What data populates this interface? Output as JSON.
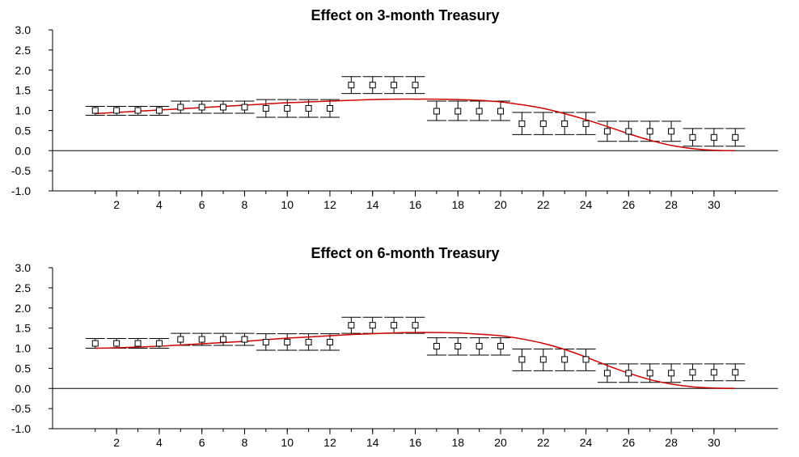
{
  "chart_data": [
    {
      "type": "scatter",
      "title": "Effect on 3-month Treasury",
      "x": [
        1,
        2,
        3,
        4,
        5,
        6,
        7,
        8,
        9,
        10,
        11,
        12,
        13,
        14,
        15,
        16,
        17,
        18,
        19,
        20,
        21,
        22,
        23,
        24,
        25,
        26,
        27,
        28,
        29,
        30,
        31
      ],
      "xticks": [
        "2",
        "4",
        "6",
        "8",
        "10",
        "12",
        "14",
        "16",
        "18",
        "20",
        "22",
        "24",
        "26",
        "28",
        "30"
      ],
      "yticks": [
        "3.0",
        "2.5",
        "2.0",
        "1.5",
        "1.0",
        "0.5",
        "0.0",
        "-0.5",
        "-1.0"
      ],
      "xlim": [
        -1,
        33
      ],
      "ylim": [
        -1.0,
        3.0
      ],
      "series": [
        {
          "kind": "estimate_with_error_bars",
          "color": "#000000",
          "y": [
            1.0,
            1.0,
            1.0,
            1.0,
            1.08,
            1.08,
            1.08,
            1.08,
            1.05,
            1.05,
            1.05,
            1.05,
            1.63,
            1.63,
            1.63,
            1.63,
            0.98,
            0.98,
            0.98,
            0.98,
            0.67,
            0.67,
            0.67,
            0.67,
            0.48,
            0.48,
            0.48,
            0.48,
            0.33,
            0.33,
            0.33
          ],
          "low": [
            0.88,
            0.88,
            0.88,
            0.88,
            0.93,
            0.93,
            0.93,
            0.93,
            0.83,
            0.83,
            0.83,
            0.83,
            1.42,
            1.42,
            1.42,
            1.42,
            0.75,
            0.75,
            0.75,
            0.75,
            0.4,
            0.4,
            0.4,
            0.4,
            0.23,
            0.23,
            0.23,
            0.23,
            0.11,
            0.11,
            0.11
          ],
          "high": [
            1.1,
            1.1,
            1.1,
            1.1,
            1.23,
            1.23,
            1.23,
            1.23,
            1.27,
            1.27,
            1.27,
            1.27,
            1.84,
            1.84,
            1.84,
            1.84,
            1.23,
            1.23,
            1.23,
            1.23,
            0.95,
            0.95,
            0.95,
            0.95,
            0.73,
            0.73,
            0.73,
            0.73,
            0.55,
            0.55,
            0.55
          ]
        },
        {
          "kind": "fitted_curve",
          "color": "#cc0000",
          "y": [
            0.92,
            0.95,
            0.98,
            1.01,
            1.04,
            1.07,
            1.1,
            1.13,
            1.16,
            1.19,
            1.21,
            1.23,
            1.25,
            1.27,
            1.28,
            1.28,
            1.28,
            1.27,
            1.25,
            1.21,
            1.14,
            1.05,
            0.92,
            0.77,
            0.6,
            0.42,
            0.26,
            0.13,
            0.05,
            0.01,
            0.0
          ]
        }
      ]
    },
    {
      "type": "scatter",
      "title": "Effect on 6-month Treasury",
      "x": [
        1,
        2,
        3,
        4,
        5,
        6,
        7,
        8,
        9,
        10,
        11,
        12,
        13,
        14,
        15,
        16,
        17,
        18,
        19,
        20,
        21,
        22,
        23,
        24,
        25,
        26,
        27,
        28,
        29,
        30,
        31
      ],
      "xticks": [
        "2",
        "4",
        "6",
        "8",
        "10",
        "12",
        "14",
        "16",
        "18",
        "20",
        "22",
        "24",
        "26",
        "28",
        "30"
      ],
      "yticks": [
        "3.0",
        "2.5",
        "2.0",
        "1.5",
        "1.0",
        "0.5",
        "0.0",
        "-0.5",
        "-1.0"
      ],
      "xlim": [
        -1,
        33
      ],
      "ylim": [
        -1.0,
        3.0
      ],
      "series": [
        {
          "kind": "estimate_with_error_bars",
          "color": "#000000",
          "y": [
            1.12,
            1.12,
            1.12,
            1.12,
            1.22,
            1.22,
            1.22,
            1.22,
            1.15,
            1.15,
            1.15,
            1.15,
            1.57,
            1.57,
            1.57,
            1.57,
            1.05,
            1.05,
            1.05,
            1.05,
            0.72,
            0.72,
            0.72,
            0.72,
            0.38,
            0.38,
            0.38,
            0.38,
            0.4,
            0.4,
            0.4
          ],
          "low": [
            1.0,
            1.0,
            1.0,
            1.0,
            1.07,
            1.07,
            1.07,
            1.07,
            0.95,
            0.95,
            0.95,
            0.95,
            1.37,
            1.37,
            1.37,
            1.37,
            0.83,
            0.83,
            0.83,
            0.83,
            0.44,
            0.44,
            0.44,
            0.44,
            0.15,
            0.15,
            0.15,
            0.15,
            0.19,
            0.19,
            0.19
          ],
          "high": [
            1.24,
            1.24,
            1.24,
            1.24,
            1.37,
            1.37,
            1.37,
            1.37,
            1.36,
            1.36,
            1.36,
            1.36,
            1.77,
            1.77,
            1.77,
            1.77,
            1.26,
            1.26,
            1.26,
            1.26,
            0.98,
            0.98,
            0.98,
            0.98,
            0.61,
            0.61,
            0.61,
            0.61,
            0.61,
            0.61,
            0.61
          ]
        },
        {
          "kind": "fitted_curve",
          "color": "#cc0000",
          "y": [
            1.0,
            1.01,
            1.03,
            1.05,
            1.08,
            1.11,
            1.14,
            1.17,
            1.21,
            1.25,
            1.28,
            1.31,
            1.34,
            1.36,
            1.38,
            1.39,
            1.39,
            1.38,
            1.35,
            1.31,
            1.23,
            1.12,
            0.97,
            0.78,
            0.57,
            0.38,
            0.22,
            0.11,
            0.04,
            0.01,
            0.0
          ]
        }
      ]
    }
  ]
}
